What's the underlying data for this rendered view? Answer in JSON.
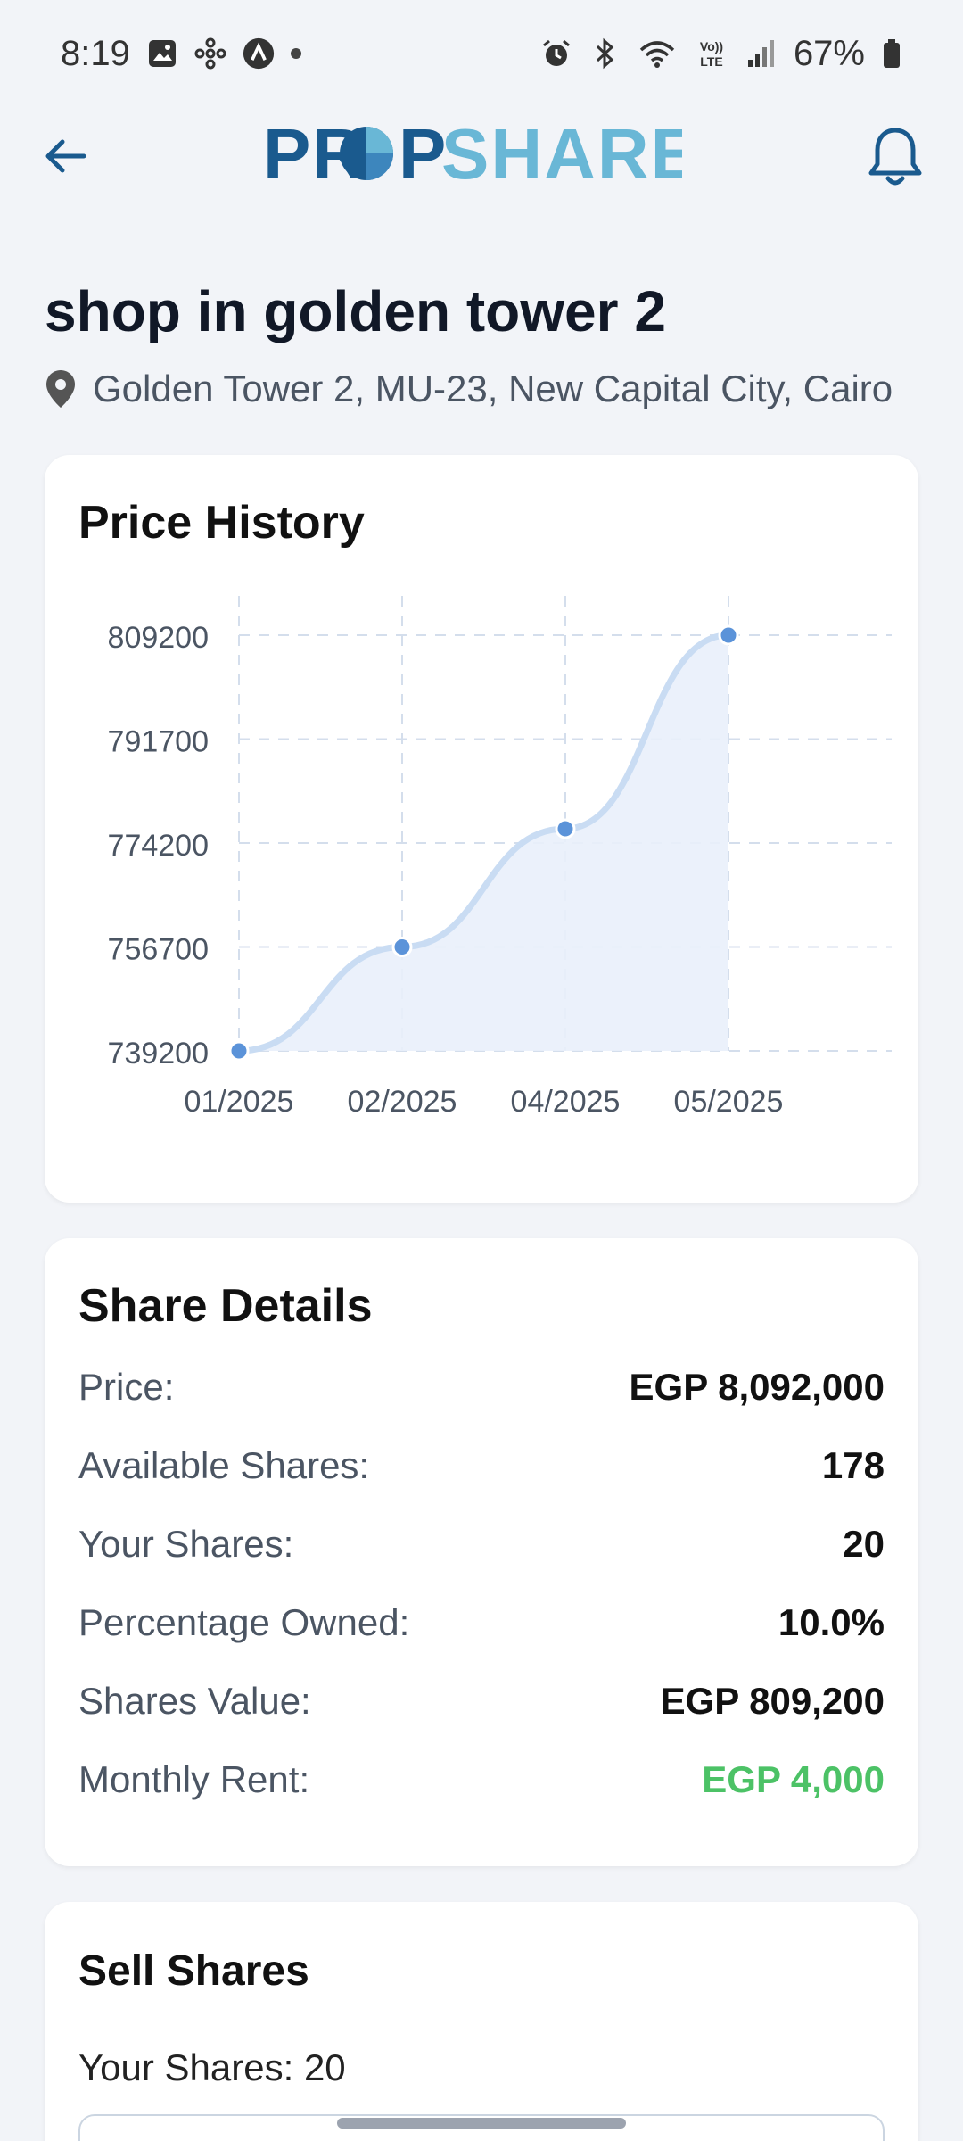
{
  "status_bar": {
    "time": "8:19",
    "battery": "67%",
    "icons_left": [
      "gallery-icon",
      "pinwheel-icon",
      "arc-icon",
      "dot-icon"
    ],
    "icons_right": [
      "alarm-icon",
      "bluetooth-icon",
      "wifi-icon",
      "volte-icon",
      "signal-icon",
      "battery-icon"
    ],
    "volte_label": "Vo)) LTE"
  },
  "app_bar": {
    "logo_left": "PR",
    "logo_mid": "P",
    "logo_right": "SHARE",
    "brand_dark": "#1a5a8e",
    "brand_light": "#69b7d6"
  },
  "property": {
    "title": "shop in golden tower 2",
    "location": "Golden Tower 2, MU-23, New Capital City, Cairo"
  },
  "price_history": {
    "title": "Price History"
  },
  "chart_data": {
    "type": "area",
    "title": "Price History",
    "categories": [
      "01/2025",
      "02/2025",
      "04/2025",
      "05/2025"
    ],
    "values": [
      739200,
      756700,
      776600,
      809200
    ],
    "yticks": [
      809200,
      791700,
      774200,
      756700,
      739200
    ],
    "ylim": [
      739200,
      809200
    ],
    "grid": true,
    "line_color": "#5b93d9",
    "fill_color": "#e9f0fb"
  },
  "share_details": {
    "title": "Share Details",
    "rows": [
      {
        "label": "Price:",
        "value": "EGP 8,092,000"
      },
      {
        "label": "Available Shares:",
        "value": "178"
      },
      {
        "label": "Your Shares:",
        "value": "20"
      },
      {
        "label": "Percentage Owned:",
        "value": "10.0%"
      },
      {
        "label": "Shares Value:",
        "value": "EGP 809,200"
      },
      {
        "label": "Monthly Rent:",
        "value": "EGP 4,000"
      }
    ],
    "rent_color": "#4cc266"
  },
  "sell_shares": {
    "title": "Sell Shares",
    "your_shares": "Your Shares: 20"
  }
}
